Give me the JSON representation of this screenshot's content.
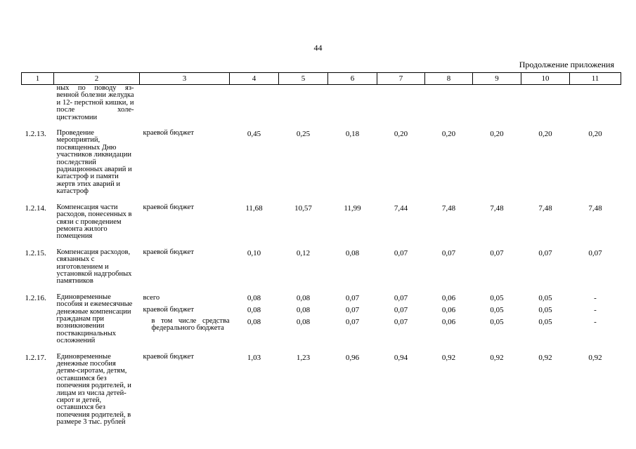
{
  "page_number": "44",
  "continuation_label": "Продолжение приложения",
  "columns": [
    "1",
    "2",
    "3",
    "4",
    "5",
    "6",
    "7",
    "8",
    "9",
    "10",
    "11"
  ],
  "carry_over": {
    "name": "ных по поводу яз- венной болезни желудка и 12- перстной кишки, и после холе- цистэктомии"
  },
  "rows": [
    {
      "num": "1.2.13.",
      "name": "Проведение мероприятий, посвященных Дню участников ликвидации последствий радиационных аварий и катастроф и памяти жертв этих аварий и катастроф",
      "source": "краевой бюджет",
      "values": [
        "0,45",
        "0,25",
        "0,18",
        "0,20",
        "0,20",
        "0,20",
        "0,20",
        "0,20"
      ]
    },
    {
      "num": "1.2.14.",
      "name": "Компенсация части расходов, понесенных в связи с проведением ремонта жилого помещения",
      "source": "краевой бюджет",
      "values": [
        "11,68",
        "10,57",
        "11,99",
        "7,44",
        "7,48",
        "7,48",
        "7,48",
        "7,48"
      ]
    },
    {
      "num": "1.2.15.",
      "name": "Компенсация расходов, связанных с изготовлением и установкой надгробных памятников",
      "source": "краевой бюджет",
      "values": [
        "0,10",
        "0,12",
        "0,08",
        "0,07",
        "0,07",
        "0,07",
        "0,07",
        "0,07"
      ]
    },
    {
      "num": "1.2.16.",
      "name": "Единовременные пособия и ежемесячные денежные компенсации гражданам при возникновении поствакцинальных осложнений",
      "sub": [
        {
          "source": "всего",
          "values": [
            "0,08",
            "0,08",
            "0,07",
            "0,07",
            "0,06",
            "0,05",
            "0,05",
            "-"
          ]
        },
        {
          "source": "краевой бюджет",
          "values": [
            "0,08",
            "0,08",
            "0,07",
            "0,07",
            "0,06",
            "0,05",
            "0,05",
            "-"
          ]
        },
        {
          "source": "в том числе средства федерального бюджета",
          "values": [
            "0,08",
            "0,08",
            "0,07",
            "0,07",
            "0,06",
            "0,05",
            "0,05",
            "-"
          ]
        }
      ]
    },
    {
      "num": "1.2.17.",
      "name": "Единовременные денежные пособия детям-сиротам, детям, оставшимся без попечения родителей, и лицам из числа детей-сирот и детей, оставшихся без попечения родителей, в размере 3 тыс. рублей",
      "source": "краевой бюджет",
      "values": [
        "1,03",
        "1,23",
        "0,96",
        "0,94",
        "0,92",
        "0,92",
        "0,92",
        "0,92"
      ]
    }
  ]
}
